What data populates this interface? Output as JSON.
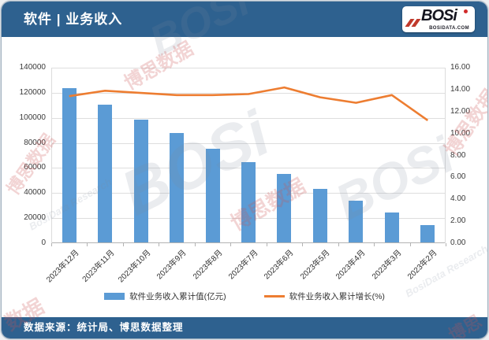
{
  "header": {
    "title": "软件 | 业务收入",
    "logo": {
      "text": "BOSi",
      "subtext": "BOSIDATA.COM"
    }
  },
  "footer": {
    "source": "数据来源：统计局、博思数据整理"
  },
  "legend": [
    {
      "label": "软件业务收入累计值(亿元)",
      "type": "bar",
      "color": "#5B9BD5"
    },
    {
      "label": "软件业务收入累计增长(%)",
      "type": "line",
      "color": "#ED7D31"
    }
  ],
  "colors": {
    "header_bar": "#2E618F",
    "bar_fill": "#5B9BD5",
    "line_stroke": "#ED7D31",
    "gridline": "#DEDEDE",
    "logo_red": "#C0392B"
  },
  "watermarks": [
    "BOSi",
    "博思数据",
    "博思数据",
    "BosiData Research",
    "BOSi",
    "博思数据",
    "BOSi",
    "博思数据",
    "BosiData Research",
    "数据",
    "博思"
  ],
  "chart_data": {
    "type": "bar",
    "combo": "bar+line",
    "categories": [
      "2023年12月",
      "2023年11月",
      "2023年10月",
      "2023年9月",
      "2023年8月",
      "2023年7月",
      "2023年6月",
      "2023年5月",
      "2023年4月",
      "2023年3月",
      "2023年2月"
    ],
    "series": [
      {
        "name": "软件业务收入累计值(亿元)",
        "type": "bar",
        "axis": "left",
        "values": [
          123000,
          110000,
          98000,
          87000,
          75000,
          64000,
          54500,
          43000,
          33000,
          24000,
          14000
        ]
      },
      {
        "name": "软件业务收入累计增长(%)",
        "type": "line",
        "axis": "right",
        "values": [
          13.4,
          13.9,
          13.7,
          13.5,
          13.5,
          13.6,
          14.2,
          13.3,
          12.8,
          13.5,
          11.2
        ]
      }
    ],
    "y_left": {
      "ticks": [
        "0",
        "20000",
        "40000",
        "60000",
        "80000",
        "100000",
        "120000",
        "140000"
      ],
      "min": 0,
      "max": 140000
    },
    "y_right": {
      "ticks": [
        "0.00",
        "2.00",
        "4.00",
        "6.00",
        "8.00",
        "10.00",
        "12.00",
        "14.00",
        "16.00"
      ],
      "min": 0,
      "max": 16
    },
    "grid": true,
    "legend_position": "bottom"
  }
}
